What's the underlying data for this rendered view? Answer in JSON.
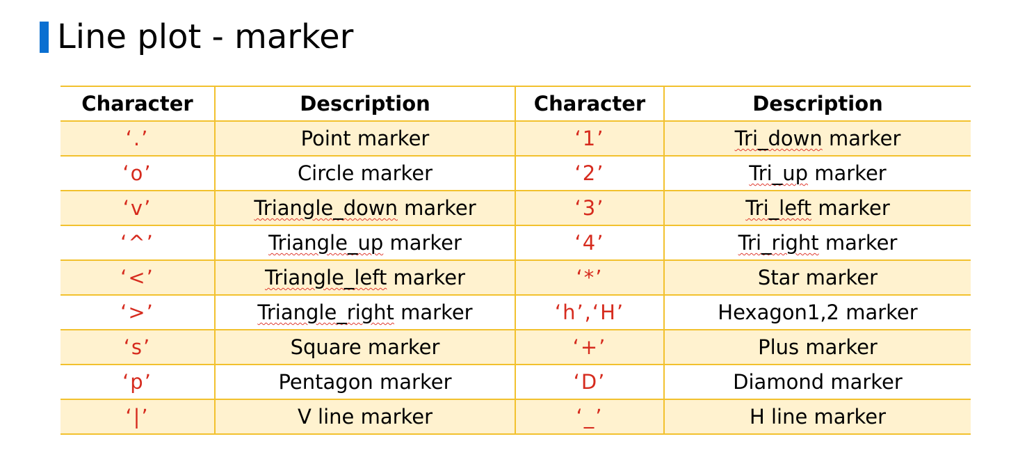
{
  "title": "Line plot - marker",
  "colors": {
    "accent_bar": "#0a6fd1",
    "table_border": "#f2c12e",
    "row_shade": "#fff2cf",
    "character_text": "#d62b1e"
  },
  "table": {
    "headers": [
      "Character",
      "Description",
      "Character",
      "Description"
    ],
    "rows": [
      {
        "char1": "‘.’",
        "desc1": "Point marker",
        "char2": "‘1’",
        "desc2": "Tri_down marker"
      },
      {
        "char1": "‘o’",
        "desc1": "Circle marker",
        "char2": "‘2’",
        "desc2": "Tri_up marker"
      },
      {
        "char1": "‘v’",
        "desc1": "Triangle_down marker",
        "char2": "‘3’",
        "desc2": "Tri_left marker"
      },
      {
        "char1": "‘^’",
        "desc1": "Triangle_up marker",
        "char2": "‘4’",
        "desc2": "Tri_right marker"
      },
      {
        "char1": "‘<’",
        "desc1": "Triangle_left marker",
        "char2": "‘*’",
        "desc2": "Star marker"
      },
      {
        "char1": "‘>’",
        "desc1": "Triangle_right marker",
        "char2": "‘h’,‘H’",
        "desc2": "Hexagon1,2 marker"
      },
      {
        "char1": "‘s’",
        "desc1": "Square marker",
        "char2": "‘+’",
        "desc2": "Plus marker"
      },
      {
        "char1": "‘p’",
        "desc1": "Pentagon marker",
        "char2": "‘D’",
        "desc2": "Diamond marker"
      },
      {
        "char1": "‘|’",
        "desc1": "V line marker",
        "char2": "‘_’",
        "desc2": "H line marker"
      }
    ]
  }
}
